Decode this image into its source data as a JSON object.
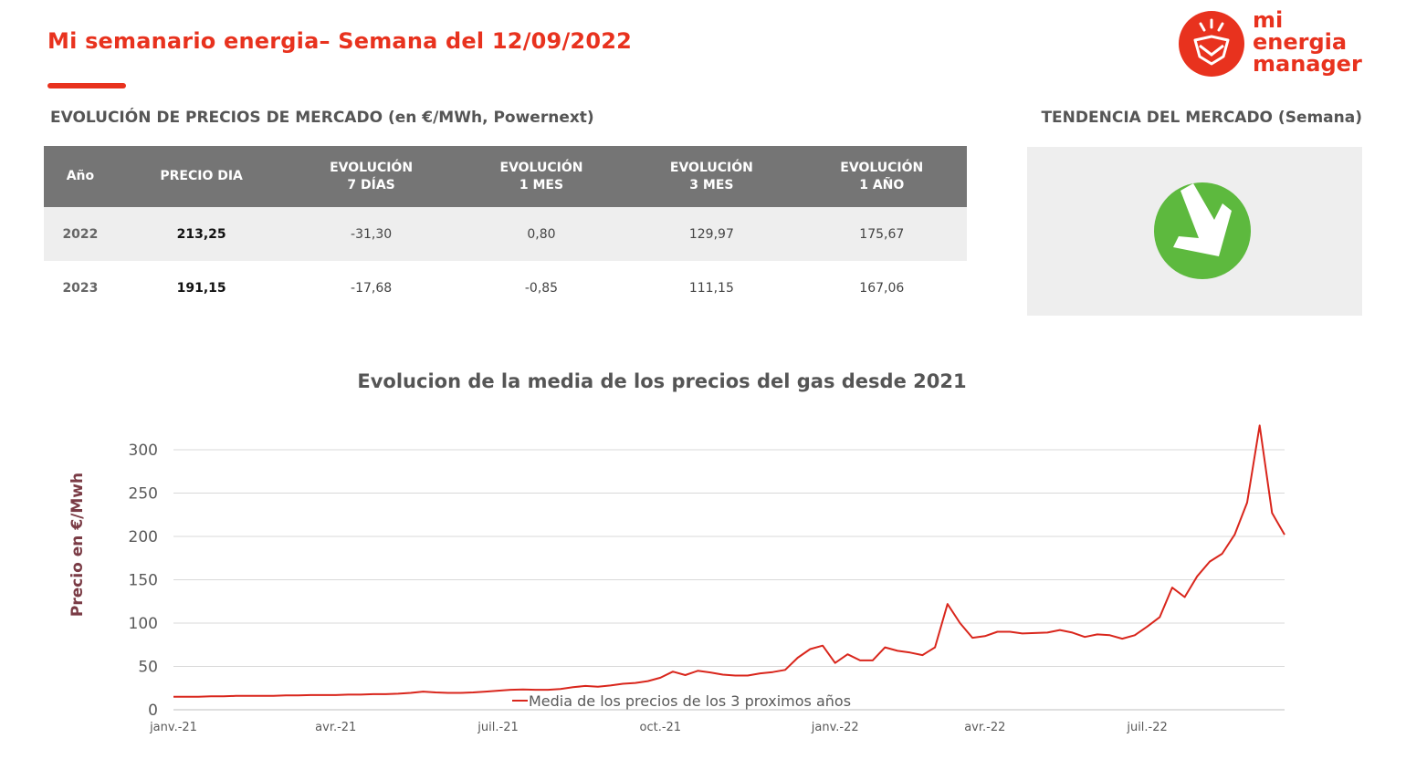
{
  "header": {
    "title": "Mi semanario energia– Semana del 12/09/2022",
    "logo": [
      "mi",
      "energia",
      "manager"
    ]
  },
  "prices": {
    "title": "EVOLUCIÓN DE PRECIOS DE MERCADO (en €/MWh, Powernext)",
    "table": {
      "header": [
        [
          "Año"
        ],
        [
          "PRECIO DIA"
        ],
        [
          "EVOLUCIÓN",
          "7 DÍAS"
        ],
        [
          "EVOLUCIÓN",
          "1 MES"
        ],
        [
          "EVOLUCIÓN",
          "3 MES"
        ],
        [
          "EVOLUCIÓN",
          "1 AÑO"
        ]
      ],
      "rows": [
        [
          "2022",
          "213,25",
          "-31,30",
          "0,80",
          "129,97",
          "175,67"
        ],
        [
          "2023",
          "191,15",
          "-17,68",
          "-0,85",
          "111,15",
          "167,06"
        ]
      ]
    }
  },
  "trend": {
    "title": "TENDENCIA DEL MERCADO (Semana)"
  },
  "chart_data": {
    "type": "line",
    "title": "Evolucion de la media de los precios del gas desde 2021",
    "y_label": "Precio en €/Mwh",
    "categories": [
      "janv.-21",
      null,
      null,
      null,
      null,
      null,
      null,
      null,
      null,
      null,
      null,
      null,
      null,
      "avr.-21",
      null,
      null,
      null,
      null,
      null,
      null,
      null,
      null,
      null,
      null,
      null,
      null,
      "juil.-21",
      null,
      null,
      null,
      null,
      null,
      null,
      null,
      null,
      null,
      null,
      null,
      null,
      "oct.-21",
      null,
      null,
      null,
      null,
      null,
      null,
      null,
      null,
      null,
      null,
      null,
      null,
      null,
      "janv.-22",
      null,
      null,
      null,
      null,
      null,
      null,
      null,
      null,
      null,
      null,
      null,
      "avr.-22",
      null,
      null,
      null,
      null,
      null,
      null,
      null,
      null,
      null,
      null,
      null,
      null,
      "juil.-22",
      null,
      null,
      null,
      null,
      null,
      null,
      null,
      null,
      null,
      null,
      null
    ],
    "series": [
      {
        "name": "Media de los precios de los 3 proximos años",
        "color": "#d9261c",
        "values": [
          15,
          15,
          15,
          15.5,
          15.5,
          16,
          16,
          16,
          16,
          16.5,
          16.5,
          17,
          17,
          17,
          17.5,
          17.5,
          18,
          18,
          18.5,
          19.5,
          21,
          20,
          19.5,
          19.5,
          20,
          21,
          22,
          23,
          23.5,
          23,
          23,
          24,
          26,
          27.5,
          26.5,
          28,
          30,
          31,
          33,
          37,
          44,
          40,
          45,
          43,
          40.5,
          39.5,
          39.5,
          42,
          43.5,
          46,
          60,
          70,
          74,
          54,
          64,
          57,
          57,
          72,
          68,
          66,
          63,
          72,
          122,
          100,
          83,
          85,
          90,
          90,
          88,
          88.5,
          89,
          92,
          89,
          84,
          87,
          86,
          82,
          86,
          96,
          107,
          141,
          130,
          154,
          171,
          180,
          202,
          239,
          328,
          227,
          202
        ]
      }
    ],
    "ylim": [
      0,
      330
    ],
    "yticks": [
      0,
      50,
      100,
      150,
      200,
      250,
      300
    ],
    "grid": true,
    "legend": "bottom"
  }
}
